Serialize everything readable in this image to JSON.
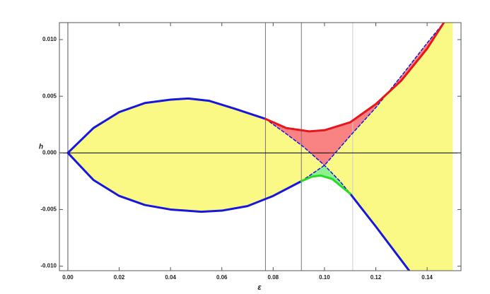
{
  "chart_data": {
    "type": "region",
    "x_label": "ε",
    "y_label": "h",
    "xlim": [
      -0.0033,
      0.1532
    ],
    "ylim": [
      -0.0104,
      0.0115
    ],
    "xticks": [
      {
        "value": 0,
        "label": "0.00"
      },
      {
        "value": 0.02,
        "label": "0.02"
      },
      {
        "value": 0.04,
        "label": "0.04"
      },
      {
        "value": 0.06,
        "label": "0.06"
      },
      {
        "value": 0.08,
        "label": "0.08"
      },
      {
        "value": 0.1,
        "label": "0.10"
      },
      {
        "value": 0.12,
        "label": "0.12"
      },
      {
        "value": 0.14,
        "label": "0.14"
      }
    ],
    "yticks": [
      {
        "value": -0.01,
        "label": "-0.010"
      },
      {
        "value": -0.005,
        "label": "-0.005"
      },
      {
        "value": 0,
        "label": "0.000"
      },
      {
        "value": 0.005,
        "label": "0.005"
      },
      {
        "value": 0.01,
        "label": "0.010"
      }
    ],
    "vlines": [
      {
        "value": 0.077,
        "color": "#777777"
      },
      {
        "value": 0.091,
        "color": "#777777"
      },
      {
        "value": 0.111,
        "color": "#cccccc"
      }
    ],
    "regions": [
      {
        "color": "#fbf985",
        "x": [
          0,
          0.01,
          0.02,
          0.03,
          0.04,
          0.047,
          0.055,
          0.065,
          0.077,
          0.085,
          0.092,
          0.1,
          0.091,
          0.08,
          0.07,
          0.06,
          0.052,
          0.04,
          0.03,
          0.02,
          0.01
        ],
        "values": [
          0,
          0.0022,
          0.0036,
          0.0044,
          0.0047,
          0.0048,
          0.0046,
          0.0039,
          0.003,
          0.0017,
          0.0005,
          -0.0011,
          -0.0025,
          -0.0038,
          -0.0047,
          -0.0051,
          -0.0052,
          -0.005,
          -0.0046,
          -0.0038,
          -0.0024
        ]
      },
      {
        "color": "#fbf985",
        "x": [
          0.1,
          0.11,
          0.12,
          0.13,
          0.14,
          0.1465,
          0.15,
          0.15,
          0.133,
          0.13,
          0.12,
          0.11,
          0.106
        ],
        "values": [
          -0.0011,
          0.0015,
          0.004,
          0.0068,
          0.0097,
          0.0115,
          0.0115,
          -0.0104,
          -0.0104,
          -0.0095,
          -0.0065,
          -0.0036,
          -0.0025
        ]
      },
      {
        "color": "#f98383",
        "x": [
          0.077,
          0.085,
          0.094,
          0.1,
          0.11,
          0.12,
          0.13,
          0.14,
          0.1465,
          0.14,
          0.13,
          0.12,
          0.11,
          0.1,
          0.092,
          0.085
        ],
        "values": [
          0.003,
          0.0022,
          0.0019,
          0.002,
          0.0027,
          0.0043,
          0.0064,
          0.0092,
          0.0115,
          0.0097,
          0.0068,
          0.004,
          0.0015,
          -0.0011,
          0.0005,
          0.0017
        ]
      },
      {
        "color": "#8ef08e",
        "x": [
          0.091,
          0.095,
          0.0985,
          0.103,
          0.11,
          0.106,
          0.1
        ],
        "values": [
          -0.0025,
          -0.0021,
          -0.002,
          -0.0023,
          -0.0036,
          -0.0025,
          -0.0011
        ]
      }
    ],
    "series": [
      {
        "color": "#1616dd",
        "width": 3,
        "dash": false,
        "x": [
          0,
          0.01,
          0.02,
          0.03,
          0.04,
          0.047,
          0.055,
          0.065,
          0.077
        ],
        "values": [
          0,
          0.0022,
          0.0036,
          0.0044,
          0.0047,
          0.0048,
          0.0046,
          0.0039,
          0.003
        ]
      },
      {
        "color": "#1616dd",
        "width": 3,
        "dash": false,
        "x": [
          0,
          0.01,
          0.02,
          0.03,
          0.04,
          0.052,
          0.06,
          0.07,
          0.08,
          0.091
        ],
        "values": [
          0,
          -0.0024,
          -0.0038,
          -0.0046,
          -0.005,
          -0.0052,
          -0.0051,
          -0.0047,
          -0.0038,
          -0.0025
        ]
      },
      {
        "color": "#1616dd",
        "width": 1.5,
        "dash": true,
        "x": [
          0.077,
          0.085,
          0.092,
          0.1,
          0.106,
          0.11
        ],
        "values": [
          0.003,
          0.0017,
          0.0005,
          -0.0011,
          -0.0025,
          -0.0036
        ]
      },
      {
        "color": "#1616dd",
        "width": 1.5,
        "dash": true,
        "x": [
          0.091,
          0.1,
          0.11,
          0.12,
          0.13,
          0.14,
          0.1465
        ],
        "values": [
          -0.0025,
          -0.0011,
          0.0015,
          0.004,
          0.0068,
          0.0097,
          0.0115
        ]
      },
      {
        "color": "#1616dd",
        "width": 3,
        "dash": false,
        "x": [
          0.11,
          0.12,
          0.13,
          0.133
        ],
        "values": [
          -0.0036,
          -0.0065,
          -0.0095,
          -0.0104
        ]
      },
      {
        "color": "#e8151b",
        "width": 3,
        "dash": false,
        "x": [
          0.077,
          0.085,
          0.094,
          0.1,
          0.11,
          0.12,
          0.13,
          0.14,
          0.1465
        ],
        "values": [
          0.003,
          0.0022,
          0.0019,
          0.002,
          0.0027,
          0.0043,
          0.0064,
          0.0092,
          0.0115
        ]
      },
      {
        "color": "#22dd22",
        "width": 3,
        "dash": false,
        "x": [
          0.091,
          0.095,
          0.0985,
          0.103,
          0.11
        ],
        "values": [
          -0.0025,
          -0.0021,
          -0.002,
          -0.0023,
          -0.0036
        ]
      }
    ]
  }
}
